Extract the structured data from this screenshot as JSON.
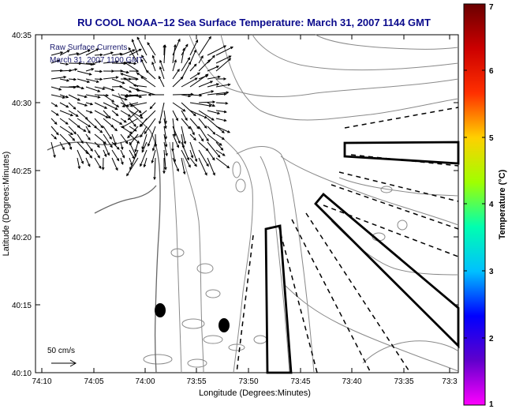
{
  "figure": {
    "title": "RU COOL  NOAA−12  Sea Surface Temperature:  March 31, 2007 1144 GMT",
    "xlabel": "Longitude (Degrees:Minutes)",
    "ylabel": "Latitude (Degrees:Minutes)",
    "inset_label_1": "Raw Surface Currents",
    "inset_label_2": "March 31, 2007 1100 GMT",
    "scale_label": "50 cm/s",
    "colorbar_label": "Temperature (°C)"
  },
  "axes": {
    "x_ticks": [
      "74:10",
      "74:05",
      "74:00",
      "73:55",
      "73:50",
      "73:45",
      "73:40",
      "73:35",
      "73:3"
    ],
    "y_ticks": [
      "40:35",
      "40:30",
      "40:25",
      "40:20",
      "40:15",
      "40:10"
    ],
    "colorbar_ticks": [
      "7",
      "6",
      "5",
      "4",
      "3",
      "2",
      "1"
    ]
  },
  "colors": {
    "title": "#0a0a8c",
    "inset_text": "#1a1a6e",
    "contour": "#8a8a8a",
    "outline": "#000000",
    "colorbar_stops": [
      "#ff00ff",
      "#6000cc",
      "#0000ff",
      "#00c0ff",
      "#00ffb0",
      "#a0ff00",
      "#ffd000",
      "#ff3000",
      "#cc0000",
      "#6a0000"
    ]
  },
  "features": {
    "glyphs": [
      "vector-arrows",
      "sampling-lines",
      "transect-boxes",
      "buoy-markers"
    ]
  }
}
